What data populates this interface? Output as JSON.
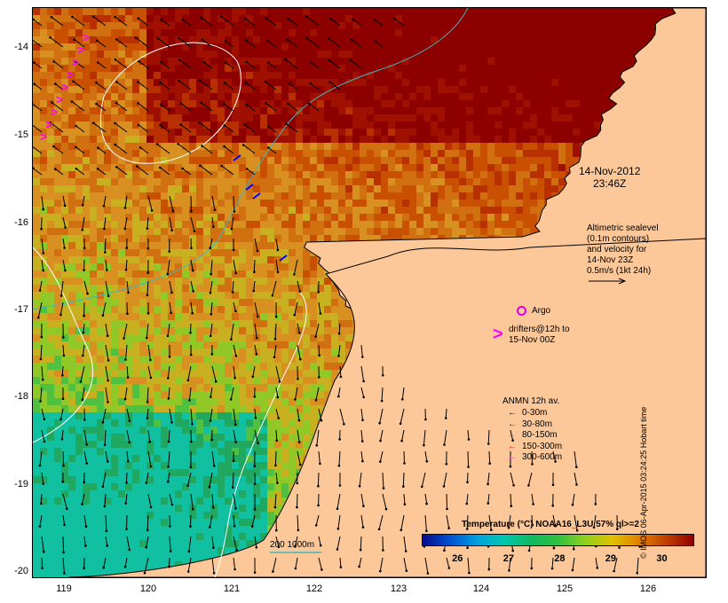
{
  "map": {
    "y_axis_labels": [
      "-14",
      "-15",
      "-16",
      "-17",
      "-18",
      "-19",
      "-20"
    ],
    "x_axis_labels": [
      "119",
      "120",
      "121",
      "122",
      "123",
      "124",
      "125",
      "126"
    ],
    "lat_range": [
      -20.05,
      -13.6
    ],
    "lon_range": [
      118.65,
      126.7
    ],
    "land_color": "#fcc89a",
    "coast_color": "#000000",
    "isobath_color": "#40b8c0",
    "contour_color": "#ffffff"
  },
  "annotations": {
    "date_line1": "14-Nov-2012",
    "date_line2": "23:46Z",
    "altimetry_lines": [
      "Altimetric sealevel",
      "(0.1m contours)",
      "and velocity for",
      "14-Nov 23Z",
      "0.5m/s (1kt 24h)"
    ],
    "argo_label": "Argo",
    "drifter_lines": [
      "drifters@12h to",
      "15-Nov 00Z"
    ],
    "drifter_symbol": ">",
    "scale_label": "200 1000m"
  },
  "anmn_legend": {
    "title": "ANMN 12h av.",
    "entries": [
      {
        "label": "0-30m",
        "color": "#000000"
      },
      {
        "label": "30-80m",
        "color": "#0000ff"
      },
      {
        "label": "80-150m",
        "color": "#00c8c8"
      },
      {
        "label": "150-300m",
        "color": "#ff0000"
      },
      {
        "label": "300-600m",
        "color": "#ff00ff"
      }
    ]
  },
  "colorbar": {
    "title": "Temperature (°C) NOAA16_L3U 57% ql>=2",
    "ticks": [
      "26",
      "27",
      "28",
      "29",
      "30"
    ],
    "range": [
      25.3,
      30.6
    ]
  },
  "credit": "© IMOS 06-Apr-2015 03:24:25 Hobart time"
}
